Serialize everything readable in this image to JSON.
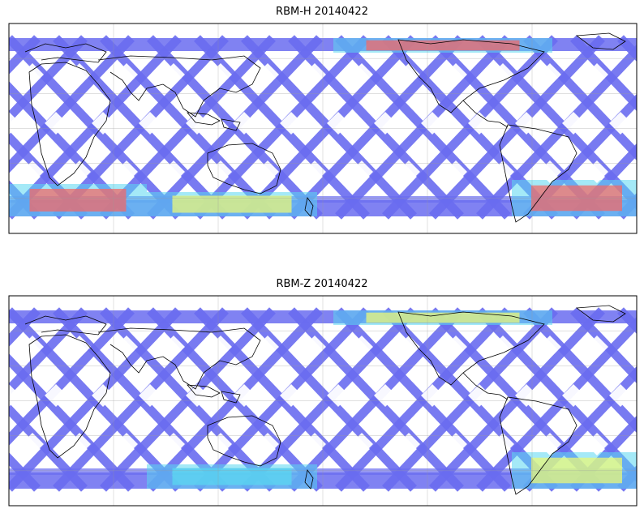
{
  "chart_data": [
    {
      "type": "heatmap",
      "title": "RBM-H 20140422",
      "xlabel": "",
      "ylabel": "",
      "grid": true,
      "legend": "none",
      "colormap": [
        "#6a6cf0",
        "#5b9df5",
        "#5ad7f0",
        "#8af5c0",
        "#e8f77a",
        "#f7b45c",
        "#f06a68"
      ],
      "track_color": "#6a6cf0",
      "hot_regions": [
        {
          "region": "north-atlantic-high-latitude",
          "level": "high"
        },
        {
          "region": "southern-ocean-south-america",
          "level": "high"
        },
        {
          "region": "southern-ocean-south-atlantic",
          "level": "high"
        },
        {
          "region": "southern-ocean-indian",
          "level": "medium"
        }
      ]
    },
    {
      "type": "heatmap",
      "title": "RBM-Z 20140422",
      "xlabel": "",
      "ylabel": "",
      "grid": true,
      "legend": "none",
      "colormap": [
        "#6a6cf0",
        "#5b9df5",
        "#5ad7f0",
        "#8af5c0",
        "#e8f77a",
        "#f7b45c",
        "#f06a68"
      ],
      "track_color": "#6a6cf0",
      "hot_regions": [
        {
          "region": "north-atlantic-high-latitude",
          "level": "medium"
        },
        {
          "region": "southern-ocean-south-america",
          "level": "medium"
        },
        {
          "region": "southern-ocean-indian",
          "level": "low"
        }
      ]
    }
  ]
}
